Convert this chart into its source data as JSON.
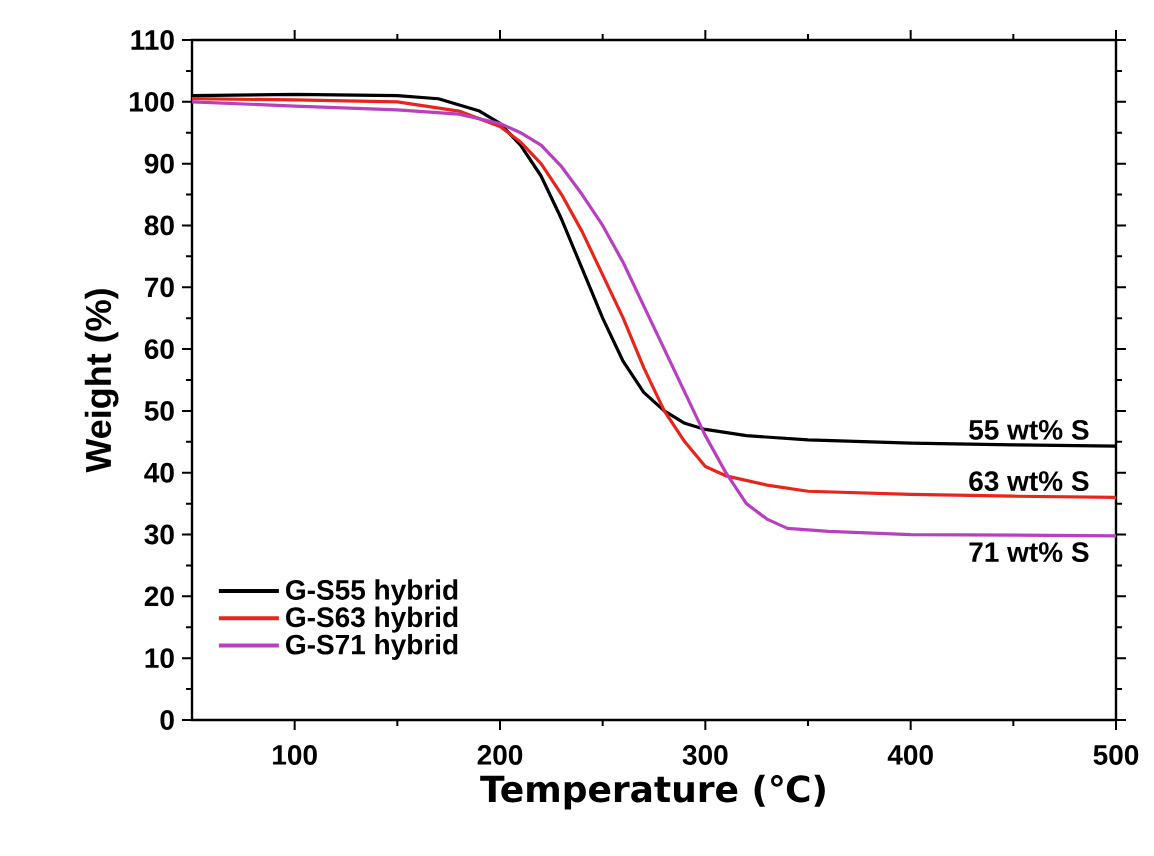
{
  "chart_data": {
    "type": "line",
    "xlabel": "Temperature (℃)",
    "ylabel": "Weight (%)",
    "xlim": [
      50,
      500
    ],
    "xticks": [
      100,
      200,
      300,
      400,
      500
    ],
    "ylim": [
      0,
      110
    ],
    "yticks": [
      0,
      10,
      20,
      30,
      40,
      50,
      60,
      70,
      80,
      90,
      100,
      110
    ],
    "grid": false,
    "legend": "bottom left",
    "line_style": "solid",
    "marker": "none",
    "series": [
      {
        "name": "G-S55 hybrid",
        "color": "#000000",
        "x": [
          50,
          100,
          150,
          170,
          190,
          200,
          210,
          220,
          230,
          240,
          250,
          260,
          270,
          280,
          290,
          300,
          320,
          350,
          400,
          450,
          500
        ],
        "values": [
          101,
          101.2,
          101,
          100.5,
          98.5,
          96.5,
          93,
          88,
          81,
          73,
          65,
          58,
          53,
          50,
          48,
          47,
          46,
          45.3,
          44.8,
          44.5,
          44.3
        ]
      },
      {
        "name": "G-S63 hybrid",
        "color": "#e8251c",
        "x": [
          50,
          100,
          150,
          180,
          200,
          210,
          220,
          230,
          240,
          250,
          260,
          270,
          280,
          290,
          300,
          310,
          330,
          350,
          400,
          450,
          500
        ],
        "values": [
          100.5,
          100.3,
          100,
          98.5,
          96,
          93.5,
          90,
          85,
          79,
          72,
          65,
          57,
          50,
          45,
          41,
          39.5,
          38,
          37,
          36.5,
          36.2,
          36
        ]
      },
      {
        "name": "G-S71 hybrid",
        "color": "#b840c0",
        "x": [
          50,
          100,
          150,
          180,
          200,
          210,
          220,
          230,
          240,
          250,
          260,
          270,
          280,
          290,
          300,
          310,
          320,
          330,
          340,
          360,
          400,
          450,
          500
        ],
        "values": [
          100,
          99.3,
          98.7,
          98,
          96.5,
          95,
          93,
          89.5,
          85,
          80,
          74,
          67,
          60,
          53,
          46,
          40,
          35,
          32.5,
          31,
          30.5,
          30,
          29.9,
          29.8
        ]
      }
    ],
    "annotations": [
      "55 wt% S",
      "63 wt% S",
      "71 wt% S"
    ]
  }
}
